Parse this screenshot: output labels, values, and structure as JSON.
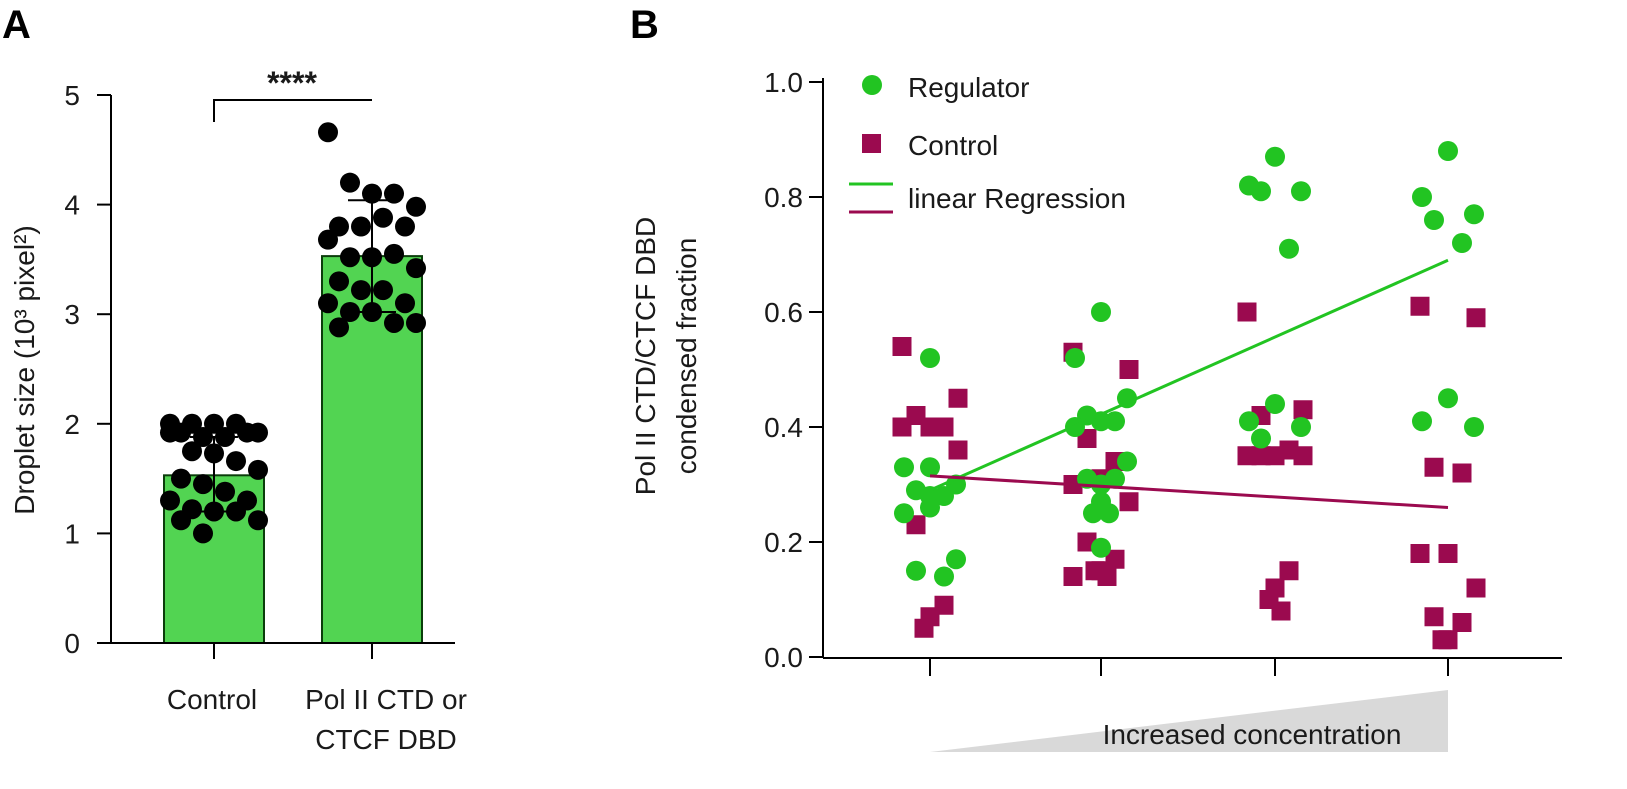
{
  "colors": {
    "bar_fill": "#52d452",
    "bar_stroke": "#0b3d0b",
    "dot_black": "#000000",
    "regulator_green": "#22c422",
    "control_maroon": "#9b0a4f",
    "axis": "#000000",
    "gradient_fill": "#d9d9d9"
  },
  "chart_data": [
    {
      "panel": "A",
      "type": "bar",
      "title": "",
      "ylabel": "Droplet size (10³ pixel²)",
      "ylim": [
        0,
        5
      ],
      "yticks": [
        0,
        1,
        2,
        3,
        4,
        5
      ],
      "categories": [
        "Control",
        "Pol II CTD or CTCF DBD"
      ],
      "category_lines": [
        [
          "Control"
        ],
        [
          "Pol II CTD or",
          "CTCF DBD"
        ]
      ],
      "means": [
        1.53,
        3.53
      ],
      "errors": [
        [
          1.2,
          1.88
        ],
        [
          3.02,
          4.04
        ]
      ],
      "significance": "****",
      "points": [
        [
          2.0,
          2.0,
          2.0,
          2.0,
          1.92,
          1.92,
          1.88,
          1.88,
          1.92,
          1.92,
          1.75,
          1.73,
          1.66,
          1.58,
          1.5,
          1.45,
          1.38,
          1.3,
          1.3,
          1.22,
          1.2,
          1.2,
          1.12,
          1.12,
          1.0
        ],
        [
          4.66,
          4.2,
          4.1,
          4.1,
          3.98,
          3.8,
          3.8,
          3.88,
          3.8,
          3.68,
          3.52,
          3.52,
          3.55,
          3.42,
          3.3,
          3.22,
          3.22,
          3.1,
          3.1,
          3.02,
          3.02,
          2.92,
          2.92,
          2.88
        ]
      ]
    },
    {
      "panel": "B",
      "type": "scatter",
      "title": "",
      "ylabel_lines": [
        "Pol II CTD/CTCF DBD",
        "condensed fraction"
      ],
      "xlabel": "Increased concentration",
      "ylim": [
        0,
        1
      ],
      "yticks": [
        "0.0",
        "0.2",
        "0.4",
        "0.6",
        "0.8",
        "1.0"
      ],
      "x_positions": [
        1,
        2,
        3,
        4
      ],
      "legend": [
        "Regulator",
        "Control",
        "linear Regression",
        "linear Regression"
      ],
      "series": [
        {
          "name": "Regulator",
          "marker": "circle",
          "points": [
            [
              1,
              0.52
            ],
            [
              1,
              0.33
            ],
            [
              1,
              0.3
            ],
            [
              1,
              0.29
            ],
            [
              1,
              0.28
            ],
            [
              1,
              0.26
            ],
            [
              1,
              0.25
            ],
            [
              1,
              0.17
            ],
            [
              1,
              0.15
            ],
            [
              1,
              0.14
            ],
            [
              1,
              0.33
            ],
            [
              1,
              0.28
            ],
            [
              2,
              0.6
            ],
            [
              2,
              0.52
            ],
            [
              2,
              0.45
            ],
            [
              2,
              0.42
            ],
            [
              2,
              0.41
            ],
            [
              2,
              0.41
            ],
            [
              2,
              0.4
            ],
            [
              2,
              0.34
            ],
            [
              2,
              0.31
            ],
            [
              2,
              0.31
            ],
            [
              2,
              0.3
            ],
            [
              2,
              0.27
            ],
            [
              2,
              0.25
            ],
            [
              2,
              0.25
            ],
            [
              2,
              0.19
            ],
            [
              3,
              0.87
            ],
            [
              3,
              0.82
            ],
            [
              3,
              0.81
            ],
            [
              3,
              0.81
            ],
            [
              3,
              0.71
            ],
            [
              3,
              0.44
            ],
            [
              3,
              0.41
            ],
            [
              3,
              0.4
            ],
            [
              3,
              0.38
            ],
            [
              4,
              0.88
            ],
            [
              4,
              0.8
            ],
            [
              4,
              0.77
            ],
            [
              4,
              0.76
            ],
            [
              4,
              0.72
            ],
            [
              4,
              0.45
            ],
            [
              4,
              0.41
            ],
            [
              4,
              0.4
            ]
          ]
        },
        {
          "name": "Control",
          "marker": "square",
          "points": [
            [
              1,
              0.54
            ],
            [
              1,
              0.45
            ],
            [
              1,
              0.42
            ],
            [
              1,
              0.4
            ],
            [
              1,
              0.4
            ],
            [
              1,
              0.4
            ],
            [
              1,
              0.36
            ],
            [
              1,
              0.23
            ],
            [
              1,
              0.09
            ],
            [
              1,
              0.07
            ],
            [
              1,
              0.05
            ],
            [
              2,
              0.53
            ],
            [
              2,
              0.5
            ],
            [
              2,
              0.38
            ],
            [
              2,
              0.34
            ],
            [
              2,
              0.31
            ],
            [
              2,
              0.3
            ],
            [
              2,
              0.27
            ],
            [
              2,
              0.2
            ],
            [
              2,
              0.17
            ],
            [
              2,
              0.15
            ],
            [
              2,
              0.15
            ],
            [
              2,
              0.14
            ],
            [
              2,
              0.14
            ],
            [
              3,
              0.6
            ],
            [
              3,
              0.43
            ],
            [
              3,
              0.42
            ],
            [
              3,
              0.36
            ],
            [
              3,
              0.35
            ],
            [
              3,
              0.35
            ],
            [
              3,
              0.35
            ],
            [
              3,
              0.35
            ],
            [
              3,
              0.15
            ],
            [
              3,
              0.12
            ],
            [
              3,
              0.1
            ],
            [
              3,
              0.08
            ],
            [
              4,
              0.61
            ],
            [
              4,
              0.59
            ],
            [
              4,
              0.33
            ],
            [
              4,
              0.32
            ],
            [
              4,
              0.18
            ],
            [
              4,
              0.18
            ],
            [
              4,
              0.12
            ],
            [
              4,
              0.07
            ],
            [
              4,
              0.06
            ],
            [
              4,
              0.03
            ],
            [
              4,
              0.03
            ]
          ]
        }
      ],
      "regressions": [
        {
          "name": "Regulator",
          "x": [
            1,
            4
          ],
          "y": [
            0.29,
            0.69
          ]
        },
        {
          "name": "Control",
          "x": [
            1,
            4
          ],
          "y": [
            0.315,
            0.26
          ]
        }
      ]
    }
  ]
}
